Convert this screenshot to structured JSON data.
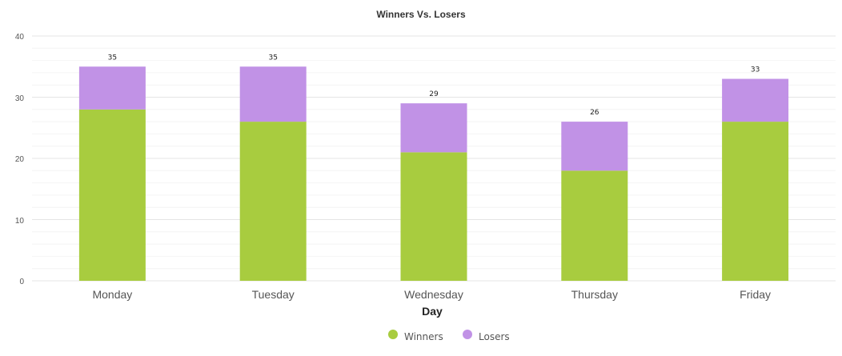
{
  "chart_data": {
    "type": "bar",
    "stacked": true,
    "title": "Winners Vs. Losers",
    "xlabel": "Day",
    "ylabel": "",
    "ylim": [
      0,
      40
    ],
    "yticks": [
      "0",
      "10",
      "20",
      "30",
      "40"
    ],
    "grid": true,
    "legend_position": "bottom-center",
    "categories": [
      "Monday",
      "Tuesday",
      "Wednesday",
      "Thursday",
      "Friday"
    ],
    "series": [
      {
        "name": "Winners",
        "color": "#a8cc3f",
        "values": [
          28,
          26,
          21,
          18,
          26
        ]
      },
      {
        "name": "Losers",
        "color": "#c192e6",
        "values": [
          7,
          9,
          8,
          8,
          7
        ]
      }
    ],
    "totals": [
      35,
      35,
      29,
      26,
      33
    ],
    "total_labels": [
      "35",
      "35",
      "29",
      "26",
      "33"
    ]
  }
}
